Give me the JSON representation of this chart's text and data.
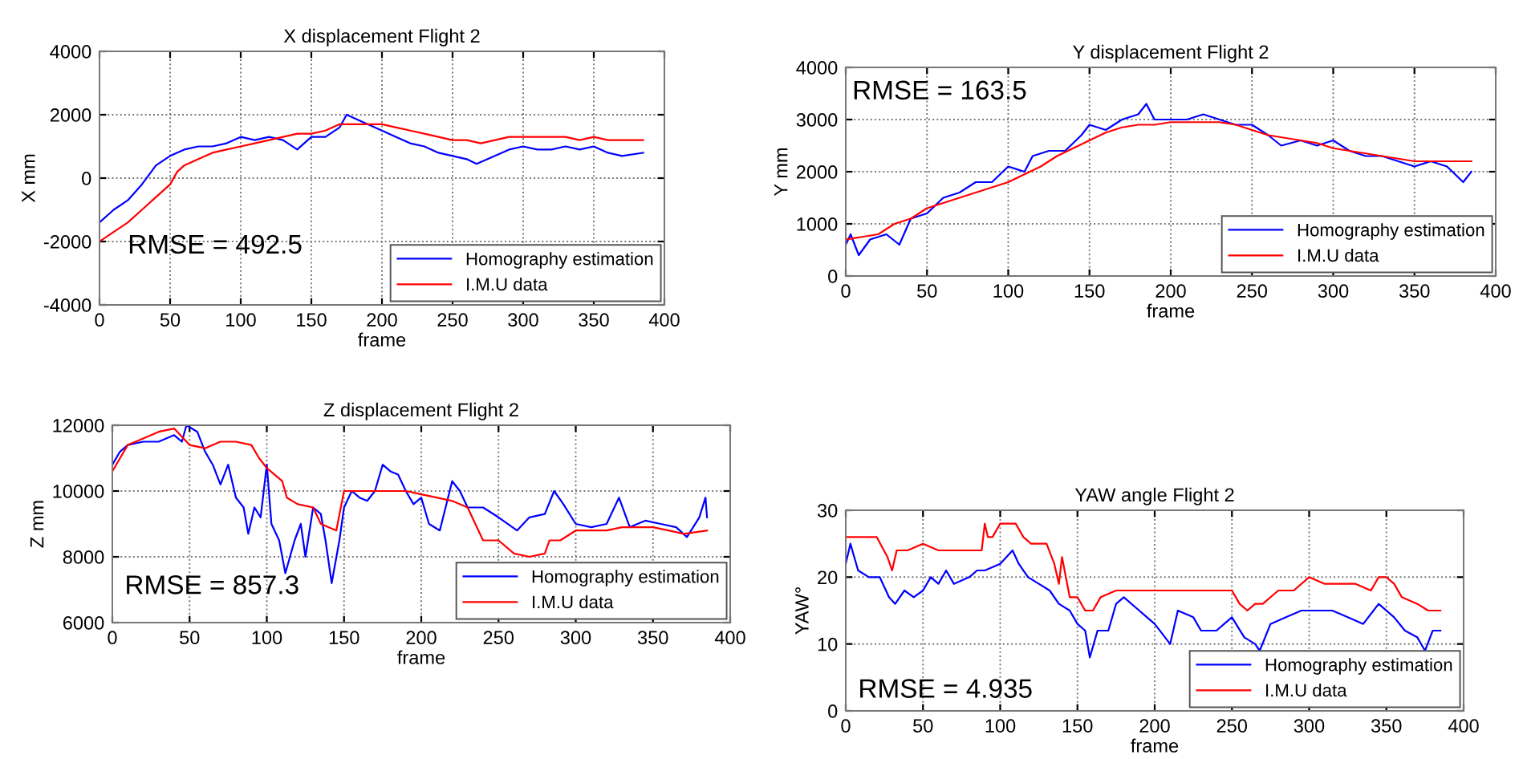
{
  "chart_data": [
    {
      "type": "line",
      "title": "X displacement Flight 2",
      "xlabel": "frame",
      "ylabel": "X mm",
      "annotations": [
        "RMSE = 492.5"
      ],
      "xlim": [
        0,
        400
      ],
      "xticks": [
        0,
        50,
        100,
        150,
        200,
        250,
        300,
        350,
        400
      ],
      "ylim": [
        -4000,
        4000
      ],
      "yticks": [
        -4000,
        -2000,
        0,
        2000,
        4000
      ],
      "grid": true,
      "legend": "bottom right",
      "line_style": "solid",
      "marker": "none",
      "series": [
        {
          "name": "Homography estimation",
          "color": "#0000ff",
          "x": [
            0,
            10,
            20,
            30,
            40,
            50,
            60,
            70,
            80,
            90,
            100,
            110,
            120,
            130,
            140,
            150,
            160,
            170,
            175,
            185,
            200,
            210,
            220,
            230,
            240,
            250,
            260,
            267,
            280,
            290,
            300,
            310,
            320,
            330,
            340,
            350,
            360,
            370,
            385
          ],
          "values": [
            -1400,
            -1000,
            -700,
            -200,
            400,
            700,
            900,
            1000,
            1000,
            1100,
            1300,
            1200,
            1300,
            1200,
            900,
            1300,
            1300,
            1600,
            2000,
            1800,
            1500,
            1300,
            1100,
            1000,
            800,
            700,
            600,
            450,
            700,
            900,
            1000,
            900,
            900,
            1000,
            900,
            1000,
            800,
            700,
            800
          ]
        },
        {
          "name": "I.M.U data",
          "color": "#ff0000",
          "x": [
            0,
            10,
            20,
            30,
            40,
            50,
            55,
            60,
            70,
            80,
            90,
            100,
            110,
            120,
            130,
            140,
            150,
            160,
            170,
            180,
            190,
            200,
            210,
            220,
            230,
            240,
            250,
            260,
            270,
            280,
            290,
            300,
            310,
            320,
            330,
            340,
            350,
            360,
            370,
            385
          ],
          "values": [
            -2000,
            -1700,
            -1400,
            -1000,
            -600,
            -200,
            200,
            400,
            600,
            800,
            900,
            1000,
            1100,
            1200,
            1300,
            1400,
            1400,
            1500,
            1700,
            1700,
            1700,
            1700,
            1600,
            1500,
            1400,
            1300,
            1200,
            1200,
            1100,
            1200,
            1300,
            1300,
            1300,
            1300,
            1300,
            1200,
            1300,
            1200,
            1200,
            1200
          ]
        }
      ]
    },
    {
      "type": "line",
      "title": "Y displacement Flight 2",
      "xlabel": "frame",
      "ylabel": "Y mm",
      "annotations": [
        "RMSE = 163.5"
      ],
      "xlim": [
        0,
        400
      ],
      "xticks": [
        0,
        50,
        100,
        150,
        200,
        250,
        300,
        350,
        400
      ],
      "ylim": [
        0,
        4000
      ],
      "yticks": [
        0,
        1000,
        2000,
        3000,
        4000
      ],
      "grid": true,
      "legend": "bottom right",
      "line_style": "solid",
      "marker": "none",
      "series": [
        {
          "name": "Homography estimation",
          "color": "#0000ff",
          "x": [
            0,
            3,
            8,
            15,
            25,
            33,
            40,
            50,
            60,
            70,
            80,
            90,
            100,
            110,
            115,
            125,
            135,
            145,
            150,
            160,
            170,
            180,
            185,
            190,
            200,
            210,
            220,
            230,
            240,
            250,
            260,
            268,
            280,
            290,
            300,
            310,
            320,
            330,
            340,
            350,
            360,
            370,
            380,
            385
          ],
          "values": [
            600,
            800,
            400,
            700,
            800,
            600,
            1100,
            1200,
            1500,
            1600,
            1800,
            1800,
            2100,
            2000,
            2300,
            2400,
            2400,
            2700,
            2900,
            2800,
            3000,
            3100,
            3300,
            3000,
            3000,
            3000,
            3100,
            3000,
            2900,
            2900,
            2700,
            2500,
            2600,
            2500,
            2600,
            2400,
            2300,
            2300,
            2200,
            2100,
            2200,
            2100,
            1800,
            2000
          ]
        },
        {
          "name": "I.M.U data",
          "color": "#ff0000",
          "x": [
            0,
            10,
            20,
            30,
            40,
            50,
            60,
            70,
            80,
            90,
            100,
            110,
            120,
            130,
            140,
            150,
            160,
            170,
            180,
            190,
            200,
            210,
            220,
            230,
            240,
            250,
            260,
            270,
            280,
            290,
            300,
            310,
            320,
            330,
            340,
            350,
            360,
            370,
            385
          ],
          "values": [
            700,
            750,
            800,
            1000,
            1100,
            1300,
            1400,
            1500,
            1600,
            1700,
            1800,
            1950,
            2100,
            2300,
            2450,
            2600,
            2750,
            2850,
            2900,
            2900,
            2950,
            2950,
            2950,
            2950,
            2900,
            2800,
            2700,
            2650,
            2600,
            2550,
            2450,
            2400,
            2350,
            2300,
            2250,
            2200,
            2200,
            2200,
            2200
          ]
        }
      ]
    },
    {
      "type": "line",
      "title": "Z displacement Flight 2",
      "xlabel": "frame",
      "ylabel": "Z mm",
      "annotations": [
        "RMSE = 857.3"
      ],
      "xlim": [
        0,
        400
      ],
      "xticks": [
        0,
        50,
        100,
        150,
        200,
        250,
        300,
        350,
        400
      ],
      "ylim": [
        6000,
        12000
      ],
      "yticks": [
        6000,
        8000,
        10000,
        12000
      ],
      "grid": true,
      "legend": "bottom right",
      "line_style": "solid",
      "marker": "none",
      "series": [
        {
          "name": "Homography estimation",
          "color": "#0000ff",
          "x": [
            0,
            5,
            10,
            20,
            30,
            40,
            45,
            48,
            55,
            60,
            65,
            70,
            75,
            80,
            85,
            88,
            92,
            96,
            100,
            103,
            108,
            112,
            118,
            122,
            125,
            130,
            135,
            138,
            142,
            147,
            150,
            155,
            160,
            165,
            170,
            175,
            180,
            185,
            190,
            195,
            200,
            205,
            212,
            220,
            225,
            230,
            240,
            250,
            262,
            270,
            280,
            286,
            292,
            300,
            310,
            320,
            328,
            335,
            345,
            355,
            365,
            372,
            380,
            384,
            385
          ],
          "values": [
            10800,
            11200,
            11400,
            11500,
            11500,
            11700,
            11500,
            12000,
            11800,
            11200,
            10800,
            10200,
            10800,
            9800,
            9500,
            8700,
            9500,
            9200,
            10800,
            9000,
            8500,
            7500,
            8500,
            9000,
            8000,
            9500,
            9300,
            8500,
            7200,
            8500,
            9500,
            10000,
            9800,
            9700,
            10000,
            10800,
            10600,
            10500,
            10000,
            9600,
            9800,
            9000,
            8800,
            10300,
            10000,
            9500,
            9500,
            9200,
            8800,
            9200,
            9300,
            10000,
            9600,
            9000,
            8900,
            9000,
            9800,
            8900,
            9100,
            9000,
            8900,
            8600,
            9200,
            9800,
            9200
          ]
        },
        {
          "name": "I.M.U data",
          "color": "#ff0000",
          "x": [
            0,
            5,
            10,
            20,
            30,
            40,
            50,
            60,
            70,
            80,
            90,
            95,
            100,
            110,
            113,
            120,
            130,
            135,
            145,
            150,
            160,
            170,
            180,
            190,
            200,
            210,
            220,
            230,
            235,
            240,
            250,
            260,
            270,
            280,
            283,
            290,
            300,
            310,
            320,
            330,
            340,
            350,
            360,
            370,
            385
          ],
          "values": [
            10600,
            11000,
            11400,
            11600,
            11800,
            11900,
            11400,
            11300,
            11500,
            11500,
            11400,
            11000,
            10700,
            10300,
            9800,
            9600,
            9500,
            9000,
            8800,
            10000,
            10000,
            10000,
            10000,
            10000,
            9900,
            9800,
            9700,
            9500,
            9000,
            8500,
            8500,
            8100,
            8000,
            8100,
            8500,
            8500,
            8800,
            8800,
            8800,
            8900,
            8900,
            8900,
            8800,
            8700,
            8800
          ]
        }
      ]
    },
    {
      "type": "line",
      "title": "YAW angle Flight 2",
      "xlabel": "frame",
      "ylabel": "YAW°",
      "annotations": [
        "RMSE = 4.935"
      ],
      "xlim": [
        0,
        400
      ],
      "xticks": [
        0,
        50,
        100,
        150,
        200,
        250,
        300,
        350,
        400
      ],
      "ylim": [
        0,
        30
      ],
      "yticks": [
        0,
        10,
        20,
        30
      ],
      "grid": true,
      "legend": "bottom right",
      "line_style": "solid",
      "marker": "none",
      "series": [
        {
          "name": "Homography estimation",
          "color": "#0000ff",
          "x": [
            0,
            3,
            8,
            15,
            22,
            28,
            32,
            38,
            44,
            50,
            55,
            60,
            65,
            70,
            80,
            85,
            90,
            100,
            108,
            112,
            118,
            125,
            132,
            138,
            145,
            150,
            155,
            158,
            163,
            170,
            175,
            180,
            190,
            200,
            210,
            215,
            225,
            230,
            240,
            250,
            258,
            265,
            268,
            275,
            285,
            295,
            305,
            315,
            325,
            335,
            345,
            355,
            362,
            370,
            375,
            380,
            385
          ],
          "values": [
            22,
            25,
            21,
            20,
            20,
            17,
            16,
            18,
            17,
            18,
            20,
            19,
            21,
            19,
            20,
            21,
            21,
            22,
            24,
            22,
            20,
            19,
            18,
            16,
            15,
            13,
            12,
            8,
            12,
            12,
            16,
            17,
            15,
            13,
            10,
            15,
            14,
            12,
            12,
            14,
            11,
            10,
            9,
            13,
            14,
            15,
            15,
            15,
            14,
            13,
            16,
            14,
            12,
            11,
            9,
            12,
            12
          ]
        },
        {
          "name": "I.M.U data",
          "color": "#ff0000",
          "x": [
            0,
            10,
            20,
            27,
            30,
            33,
            40,
            50,
            60,
            70,
            80,
            88,
            90,
            92,
            95,
            100,
            110,
            115,
            120,
            130,
            135,
            138,
            140,
            145,
            150,
            155,
            160,
            165,
            175,
            200,
            220,
            240,
            250,
            255,
            260,
            265,
            270,
            280,
            290,
            300,
            310,
            320,
            330,
            340,
            345,
            350,
            355,
            360,
            370,
            377,
            385
          ],
          "values": [
            26,
            26,
            26,
            23,
            21,
            24,
            24,
            25,
            24,
            24,
            24,
            24,
            28,
            26,
            26,
            28,
            28,
            26,
            25,
            25,
            22,
            19,
            23,
            17,
            17,
            15,
            15,
            17,
            18,
            18,
            18,
            18,
            18,
            16,
            15,
            16,
            16,
            18,
            18,
            20,
            19,
            19,
            19,
            18,
            20,
            20,
            19,
            17,
            16,
            15,
            15
          ]
        }
      ]
    }
  ]
}
